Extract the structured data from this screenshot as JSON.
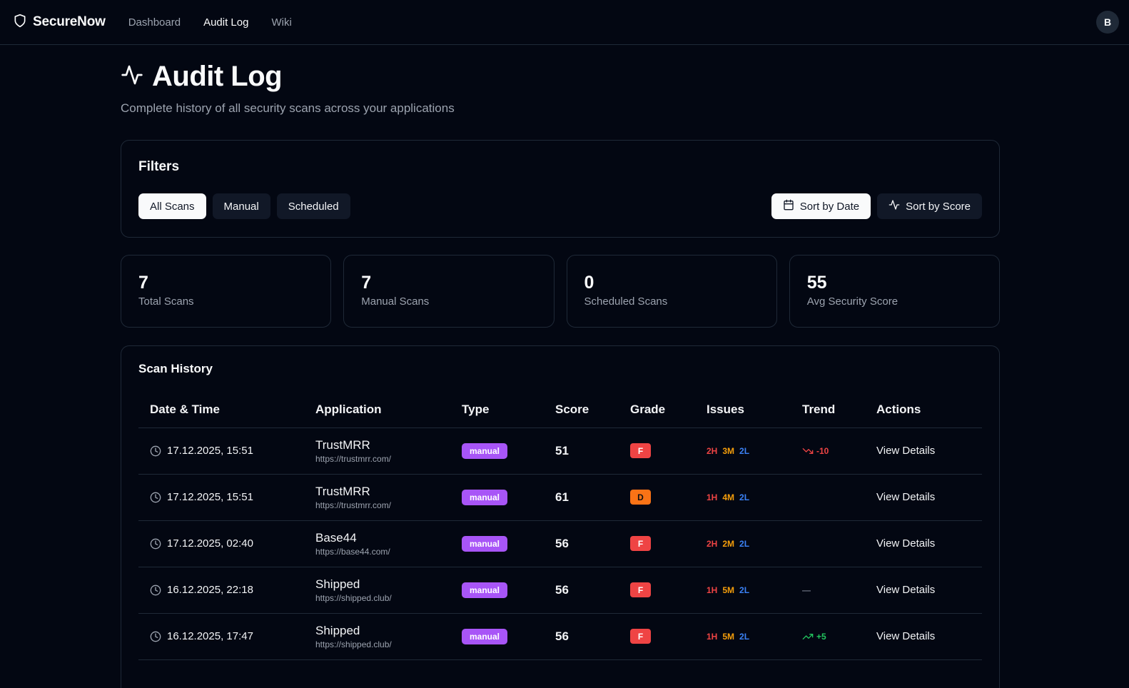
{
  "app": {
    "name": "SecureNow",
    "avatar_initial": "B"
  },
  "nav": [
    {
      "label": "Dashboard",
      "active": false
    },
    {
      "label": "Audit Log",
      "active": true
    },
    {
      "label": "Wiki",
      "active": false
    }
  ],
  "header": {
    "title": "Audit Log",
    "subtitle": "Complete history of all security scans across your applications"
  },
  "filters": {
    "title": "Filters",
    "type_buttons": [
      "All Scans",
      "Manual",
      "Scheduled"
    ],
    "selected_type": "All Scans",
    "sort_buttons": [
      "Sort by Date",
      "Sort by Score"
    ],
    "selected_sort": "Sort by Date"
  },
  "stats": [
    {
      "value": "7",
      "label": "Total Scans"
    },
    {
      "value": "7",
      "label": "Manual Scans"
    },
    {
      "value": "0",
      "label": "Scheduled Scans"
    },
    {
      "value": "55",
      "label": "Avg Security Score"
    }
  ],
  "history": {
    "title": "Scan History",
    "columns": [
      "Date & Time",
      "Application",
      "Type",
      "Score",
      "Grade",
      "Issues",
      "Trend",
      "Actions"
    ],
    "action_label": "View Details",
    "rows": [
      {
        "datetime": "17.12.2025, 15:51",
        "app": "TrustMRR",
        "url": "https://trustmrr.com/",
        "type": "manual",
        "score": "51",
        "grade": "F",
        "high": "2H",
        "medium": "3M",
        "low": "2L",
        "trend": "-10",
        "trend_dir": "down"
      },
      {
        "datetime": "17.12.2025, 15:51",
        "app": "TrustMRR",
        "url": "https://trustmrr.com/",
        "type": "manual",
        "score": "61",
        "grade": "D",
        "high": "1H",
        "medium": "4M",
        "low": "2L",
        "trend": "",
        "trend_dir": "none"
      },
      {
        "datetime": "17.12.2025, 02:40",
        "app": "Base44",
        "url": "https://base44.com/",
        "type": "manual",
        "score": "56",
        "grade": "F",
        "high": "2H",
        "medium": "2M",
        "low": "2L",
        "trend": "",
        "trend_dir": "none"
      },
      {
        "datetime": "16.12.2025, 22:18",
        "app": "Shipped",
        "url": "https://shipped.club/",
        "type": "manual",
        "score": "56",
        "grade": "F",
        "high": "1H",
        "medium": "5M",
        "low": "2L",
        "trend": "—",
        "trend_dir": "flat"
      },
      {
        "datetime": "16.12.2025, 17:47",
        "app": "Shipped",
        "url": "https://shipped.club/",
        "type": "manual",
        "score": "56",
        "grade": "F",
        "high": "1H",
        "medium": "5M",
        "low": "2L",
        "trend": "+5",
        "trend_dir": "up"
      }
    ]
  },
  "colors": {
    "background": "#030712",
    "border": "#1f2937",
    "type_badge": "#a855f7",
    "grade_F": "#ef4444",
    "grade_D": "#f97316",
    "issue_high": "#ef4444",
    "issue_medium": "#f59e0b",
    "issue_low": "#3b82f6",
    "trend_up": "#22c55e",
    "trend_down": "#ef4444"
  },
  "icons": {
    "brand": "shield-icon",
    "title": "activity-icon",
    "sort_date": "calendar-icon",
    "sort_score": "activity-icon",
    "datetime": "clock-icon",
    "trend_up": "trending-up-icon",
    "trend_down": "trending-down-icon"
  }
}
